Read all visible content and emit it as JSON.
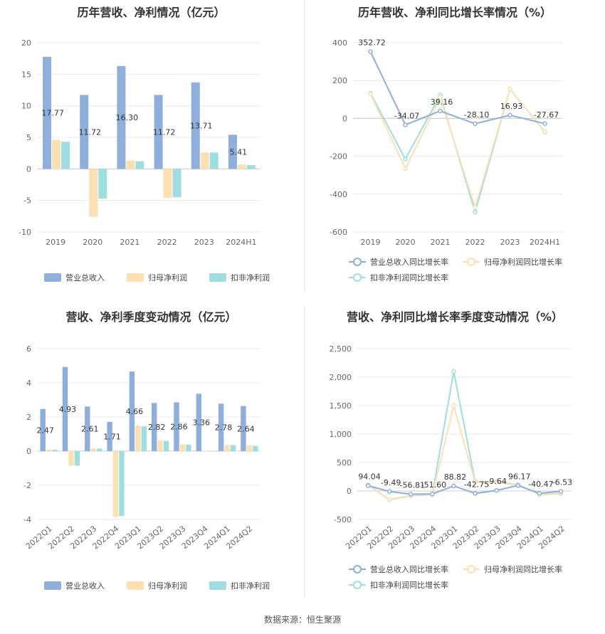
{
  "colors": {
    "rev": "#8eaedc",
    "np": "#fde0b0",
    "dnp": "#9ddfe0",
    "grid": "#e8e8e8",
    "axis": "#cccccc"
  },
  "source": "数据来源：恒生聚源",
  "chart_data": [
    {
      "type": "bar",
      "title": "历年营收、净利情况（亿元）",
      "categories": [
        "2019",
        "2020",
        "2021",
        "2022",
        "2023",
        "2024H1"
      ],
      "series": [
        {
          "name": "营业总收入",
          "values": [
            17.77,
            11.72,
            16.3,
            11.72,
            13.71,
            5.41
          ],
          "labels": [
            "17.77",
            "11.72",
            "16.30",
            "11.72",
            "13.71",
            "5.41"
          ]
        },
        {
          "name": "归母净利润",
          "values": [
            4.6,
            -7.6,
            1.3,
            -4.6,
            2.6,
            0.7
          ]
        },
        {
          "name": "扣非净利润",
          "values": [
            4.3,
            -4.7,
            1.2,
            -4.5,
            2.6,
            0.6
          ]
        }
      ],
      "yticks": [
        "20",
        "15",
        "10",
        "5",
        "0",
        "-5",
        "-10"
      ],
      "ylim": [
        -10,
        20
      ]
    },
    {
      "type": "line",
      "title": "历年营收、净利同比增长率情况（%）",
      "categories": [
        "2019",
        "2020",
        "2021",
        "2022",
        "2023",
        "2024H1"
      ],
      "series": [
        {
          "name": "营业总收入同比增长率",
          "values": [
            352.72,
            -34.07,
            39.16,
            -28.1,
            16.93,
            -27.67
          ],
          "labels": [
            "352.72",
            "-34.07",
            "39.16",
            "-28.10",
            "16.93",
            "-27.67"
          ]
        },
        {
          "name": "归母净利润同比增长率",
          "values": [
            130,
            -265,
            110,
            -470,
            155,
            -70
          ]
        },
        {
          "name": "扣非净利润同比增长率",
          "values": [
            133,
            -215,
            123,
            -495,
            155,
            -72
          ]
        }
      ],
      "yticks": [
        "400",
        "200",
        "0",
        "-200",
        "-400",
        "-600"
      ],
      "ylim": [
        -600,
        400
      ]
    },
    {
      "type": "bar",
      "title": "营收、净利季度变动情况（亿元）",
      "categories": [
        "2022Q1",
        "2022Q2",
        "2022Q3",
        "2022Q4",
        "2023Q1",
        "2023Q2",
        "2023Q3",
        "2023Q4",
        "2024Q1",
        "2024Q2"
      ],
      "series": [
        {
          "name": "营业总收入",
          "values": [
            2.47,
            4.93,
            2.61,
            1.71,
            4.66,
            2.82,
            2.86,
            3.36,
            2.78,
            2.64
          ],
          "labels": [
            "2.47",
            "4.93",
            "2.61",
            "1.71",
            "4.66",
            "2.82",
            "2.86",
            "3.36",
            "2.78",
            "2.64"
          ]
        },
        {
          "name": "归母净利润",
          "values": [
            0.1,
            -0.85,
            0.15,
            -3.85,
            1.5,
            0.62,
            0.4,
            0.02,
            0.35,
            0.33
          ]
        },
        {
          "name": "扣非净利润",
          "values": [
            0.08,
            -0.85,
            0.15,
            -3.8,
            1.45,
            0.6,
            0.38,
            0.02,
            0.35,
            0.3
          ]
        }
      ],
      "yticks": [
        "6",
        "4",
        "2",
        "0",
        "-2",
        "-4"
      ],
      "ylim": [
        -4,
        6
      ]
    },
    {
      "type": "line",
      "title": "营收、净利同比增长率季度变动情况（%）",
      "categories": [
        "2022Q1",
        "2022Q2",
        "2022Q3",
        "2022Q4",
        "2023Q1",
        "2023Q2",
        "2023Q3",
        "2023Q4",
        "2024Q1",
        "2024Q2"
      ],
      "series": [
        {
          "name": "营业总收入同比增长率",
          "values": [
            94.04,
            -9.49,
            -56.81,
            -51.6,
            88.82,
            -42.75,
            9.64,
            96.17,
            -40.47,
            -6.53
          ],
          "labels": [
            "94.04",
            "-9.49",
            "-56.81",
            "-51.60",
            "88.82",
            "-42.75",
            "9.64",
            "96.17",
            "-40.47",
            "-6.53"
          ]
        },
        {
          "name": "归母净利润同比增长率",
          "values": [
            100,
            -150,
            -80,
            -60,
            1500,
            150,
            150,
            100,
            -60,
            -40
          ]
        },
        {
          "name": "扣非净利润同比增长率",
          "values": [
            110,
            -155,
            -85,
            -65,
            2100,
            160,
            160,
            110,
            -65,
            -45
          ]
        }
      ],
      "yticks": [
        "2,500",
        "2,000",
        "1,500",
        "1,000",
        "500",
        "0",
        "-500"
      ],
      "ylim": [
        -500,
        2500
      ]
    }
  ]
}
